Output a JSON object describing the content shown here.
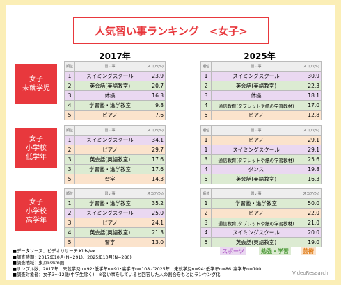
{
  "title": "人気習い事ランキング　<女子>",
  "years": [
    "2017年",
    "2025年"
  ],
  "header": [
    "順位",
    "習い事",
    "スコア(%)"
  ],
  "groups": [
    {
      "label": "女子\n未就学児",
      "tables": [
        [
          {
            "rank": "1",
            "name": "スイミングスクール",
            "score": "23.9",
            "color": "#ead8f1"
          },
          {
            "rank": "2",
            "name": "英会話(英語教室)",
            "score": "20.7",
            "color": "#dcebd2"
          },
          {
            "rank": "3",
            "name": "体操",
            "score": "16.3",
            "color": "#ead8f1"
          },
          {
            "rank": "4",
            "name": "学習塾・進学教室",
            "score": "9.8",
            "color": "#dcebd2"
          },
          {
            "rank": "5",
            "name": "ピアノ",
            "score": "7.6",
            "color": "#fbe3cc"
          }
        ],
        [
          {
            "rank": "1",
            "name": "スイミングスクール",
            "score": "30.9",
            "color": "#ead8f1"
          },
          {
            "rank": "2",
            "name": "英会話(英語教室)",
            "score": "22.3",
            "color": "#dcebd2"
          },
          {
            "rank": "3",
            "name": "体操",
            "score": "18.1",
            "color": "#ead8f1"
          },
          {
            "rank": "4",
            "name": "通信教育(タブレットや紙の学習教材)",
            "score": "17.0",
            "color": "#dcebd2"
          },
          {
            "rank": "5",
            "name": "ピアノ",
            "score": "12.8",
            "color": "#fbe3cc"
          }
        ]
      ]
    },
    {
      "label": "女子\n小学校\n低学年",
      "tables": [
        [
          {
            "rank": "1",
            "name": "スイミングスクール",
            "score": "34.1",
            "color": "#ead8f1"
          },
          {
            "rank": "2",
            "name": "ピアノ",
            "score": "29.7",
            "color": "#fbe3cc"
          },
          {
            "rank": "3",
            "name": "英会話(英語教室)",
            "score": "17.6",
            "color": "#dcebd2"
          },
          {
            "rank": "3",
            "name": "学習塾・進学教室",
            "score": "17.6",
            "color": "#dcebd2"
          },
          {
            "rank": "5",
            "name": "習字",
            "score": "14.3",
            "color": "#fbe3cc"
          }
        ],
        [
          {
            "rank": "1",
            "name": "ピアノ",
            "score": "29.1",
            "color": "#fbe3cc"
          },
          {
            "rank": "1",
            "name": "スイミングスクール",
            "score": "29.1",
            "color": "#ead8f1"
          },
          {
            "rank": "3",
            "name": "通信教育(タブレットや紙の学習教材)",
            "score": "25.6",
            "color": "#dcebd2"
          },
          {
            "rank": "4",
            "name": "ダンス",
            "score": "19.8",
            "color": "#ead8f1"
          },
          {
            "rank": "5",
            "name": "英会話(英語教室)",
            "score": "16.3",
            "color": "#dcebd2"
          }
        ]
      ]
    },
    {
      "label": "女子\n小学校\n高学年",
      "tables": [
        [
          {
            "rank": "1",
            "name": "学習塾・進学教室",
            "score": "35.2",
            "color": "#dcebd2"
          },
          {
            "rank": "2",
            "name": "スイミングスクール",
            "score": "25.0",
            "color": "#ead8f1"
          },
          {
            "rank": "3",
            "name": "ピアノ",
            "score": "24.1",
            "color": "#fbe3cc"
          },
          {
            "rank": "4",
            "name": "英会話(英語教室)",
            "score": "21.3",
            "color": "#dcebd2"
          },
          {
            "rank": "5",
            "name": "習字",
            "score": "13.0",
            "color": "#fbe3cc"
          }
        ],
        [
          {
            "rank": "1",
            "name": "学習塾・進学教室",
            "score": "50.0",
            "color": "#dcebd2"
          },
          {
            "rank": "2",
            "name": "ピアノ",
            "score": "22.0",
            "color": "#fbe3cc"
          },
          {
            "rank": "3",
            "name": "通信教育(タブレットや紙の学習教材)",
            "score": "21.0",
            "color": "#dcebd2"
          },
          {
            "rank": "4",
            "name": "スイミングスクール",
            "score": "20.0",
            "color": "#ead8f1"
          },
          {
            "rank": "5",
            "name": "英会話(英語教室)",
            "score": "19.0",
            "color": "#dcebd2"
          }
        ]
      ]
    }
  ],
  "legend": [
    {
      "label": "スポーツ",
      "color": "#b05cc7",
      "bg": "#ead8f1"
    },
    {
      "label": "勉強・学習",
      "color": "#4e9a3a",
      "bg": "#dcebd2"
    },
    {
      "label": "芸術",
      "color": "#e0801e",
      "bg": "#fbe3cc"
    }
  ],
  "notes": [
    "■データソース：ビデオリサーチ Kids/ex",
    "■調査時期：2017年10月(N=291)、2025年10月(N=280)",
    "■調査地域：東京50km圏",
    "■サンプル数：2017年　未就学児n=92･低学年n=91･高学年n=108／2025年　未就学児n=94･低学年n=86･高学年n=100",
    "■調査対象者：女子3～12歳(中学生除く)　※習い事をしていると回答した人の割合をもとにランキング化"
  ],
  "logo": "VideoResearch"
}
